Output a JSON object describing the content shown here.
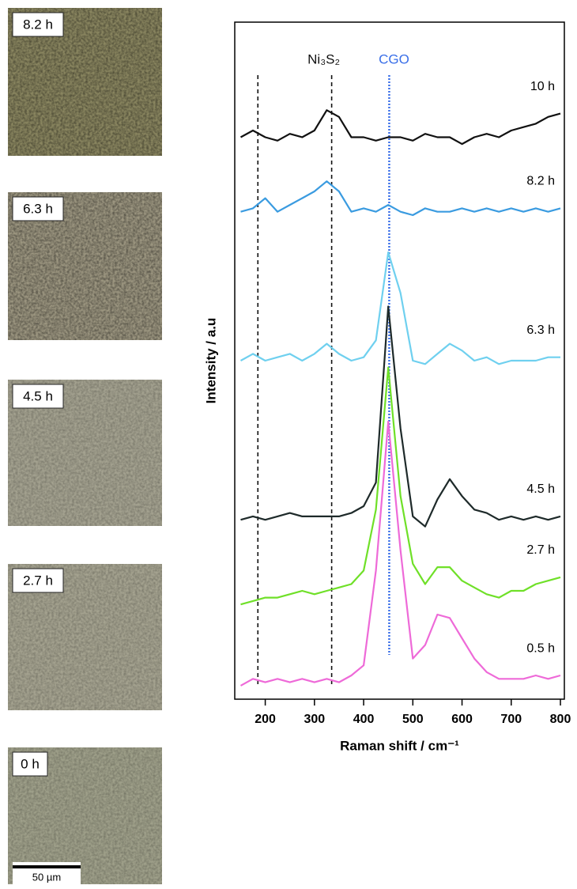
{
  "chart_data": {
    "type": "line",
    "x_label": "Raman shift / cm⁻¹",
    "y_label": "Intensity / a.u",
    "x": [
      150,
      175,
      200,
      225,
      250,
      275,
      300,
      325,
      350,
      375,
      400,
      425,
      450,
      475,
      500,
      525,
      550,
      575,
      600,
      625,
      650,
      675,
      700,
      725,
      750,
      775,
      800
    ],
    "xlim": [
      138,
      808
    ],
    "xticks": [
      200,
      300,
      400,
      500,
      600,
      700,
      800
    ],
    "ylim": [
      0,
      100
    ],
    "series": [
      {
        "name": "10 h",
        "color": "#111111",
        "values": [
          83,
          84,
          83,
          82.5,
          83.5,
          83,
          84,
          87,
          86,
          83,
          83,
          82.5,
          83,
          83,
          82.5,
          83.5,
          83,
          83,
          82,
          83,
          83.5,
          83,
          84,
          84.5,
          85,
          86,
          86.5
        ]
      },
      {
        "name": "8.2 h",
        "color": "#3a9be0",
        "values": [
          72,
          72.5,
          74,
          72,
          73,
          74,
          75,
          76.5,
          75,
          72,
          72.5,
          72,
          73,
          72,
          71.5,
          72.5,
          72,
          72,
          72.5,
          72,
          72.5,
          72,
          72.5,
          72,
          72.5,
          72,
          72.5
        ]
      },
      {
        "name": "6.3 h",
        "color": "#6fd0ef",
        "values": [
          50,
          51,
          50,
          50.5,
          51,
          50,
          51,
          52.5,
          51,
          50,
          50.5,
          53,
          66,
          60,
          50,
          49.5,
          51,
          52.5,
          51.5,
          50,
          50.5,
          49.5,
          50,
          50,
          50,
          50.5,
          50.5
        ]
      },
      {
        "name": "4.5 h",
        "color": "#1e2a2a",
        "values": [
          26.5,
          27,
          26.5,
          27,
          27.5,
          27,
          27,
          27,
          27,
          27.5,
          28.5,
          32,
          58,
          40,
          27,
          25.5,
          29.5,
          32.5,
          30,
          28,
          27.5,
          26.5,
          27,
          26.5,
          27,
          26.5,
          27
        ]
      },
      {
        "name": "2.7 h",
        "color": "#6fe028",
        "values": [
          14,
          14.5,
          15,
          15,
          15.5,
          16,
          15.5,
          16,
          16.5,
          17,
          19,
          28,
          49,
          30,
          20,
          17,
          19.5,
          19.5,
          17.5,
          16.5,
          15.5,
          15,
          16,
          16,
          17,
          17.5,
          18
        ]
      },
      {
        "name": "0.5 h",
        "color": "#ee6ad8",
        "values": [
          2,
          3,
          2.5,
          3,
          2.5,
          3,
          2.5,
          3,
          2.5,
          3.5,
          5,
          19,
          41,
          22,
          6,
          8,
          12.5,
          12,
          9,
          6,
          4,
          3,
          3,
          3,
          3.5,
          3,
          3.5
        ]
      }
    ],
    "reference_lines": [
      {
        "x": 185,
        "color": "#111111"
      },
      {
        "x": 335,
        "color": "#111111",
        "label": "Ni₃S₂"
      },
      {
        "x": 452,
        "color": "#3a6fe8",
        "label": "CGO"
      }
    ]
  },
  "images": [
    {
      "label": "8.2 h",
      "color": "#8a8660"
    },
    {
      "label": "6.3 h",
      "color": "#9c9680"
    },
    {
      "label": "4.5 h",
      "color": "#a4a290"
    },
    {
      "label": "2.7 h",
      "color": "#a5a390"
    },
    {
      "label": "0 h",
      "color": "#9fa08a"
    }
  ],
  "scale_bar": "50 µm"
}
